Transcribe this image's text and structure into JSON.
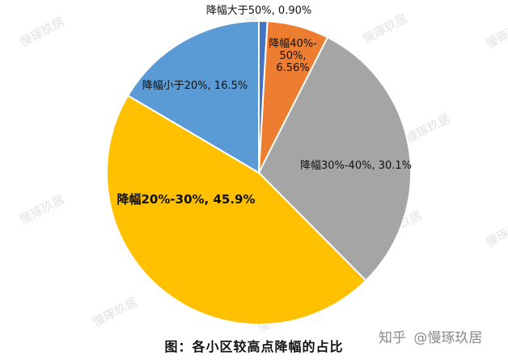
{
  "chart_data": {
    "type": "pie",
    "slices": [
      {
        "label": "降幅大于50%, 0.90%",
        "value": 0.9,
        "color": "#4472C4"
      },
      {
        "label": "降幅40%-50%, 6.56%",
        "value": 6.56,
        "color": "#ED7D31"
      },
      {
        "label": "降幅30%-40%, 30.1%",
        "value": 30.1,
        "color": "#A5A5A5"
      },
      {
        "label": "降幅20%-30%, 45.9%",
        "value": 45.9,
        "color": "#FFC000"
      },
      {
        "label": "降幅小于20%, 16.5%",
        "value": 16.5,
        "color": "#5B9BD5"
      }
    ],
    "start": "12 o'clock",
    "direction": "clockwise",
    "legend": "none"
  },
  "caption": "图：各小区较高点降幅的占比",
  "credit": {
    "platform": "知乎",
    "author": "@慢琢玖居"
  },
  "watermark": "慢琢玖居"
}
